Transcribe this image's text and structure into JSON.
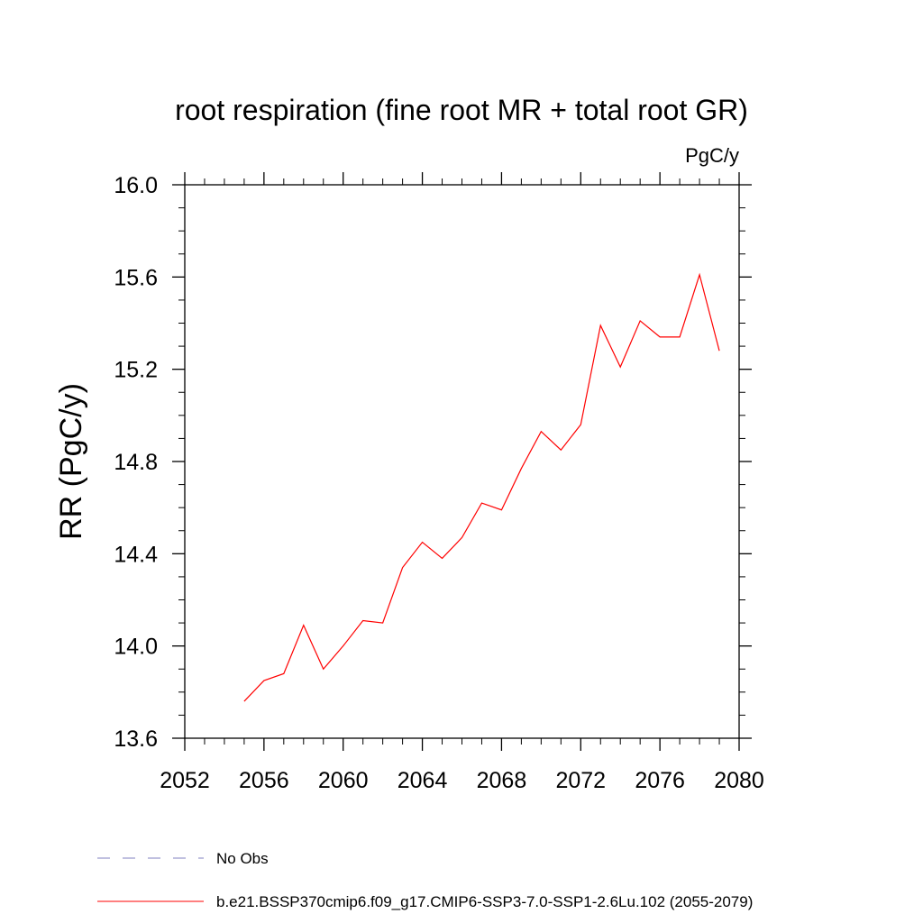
{
  "chart_data": {
    "type": "line",
    "title": "root respiration (fine root MR + total root GR)",
    "units": "PgC/y",
    "ylabel": "RR  (PgC/y)",
    "xlabel": "",
    "xlim": [
      2052,
      2080
    ],
    "ylim": [
      13.6,
      16.0
    ],
    "x_ticks": [
      2052,
      2056,
      2060,
      2064,
      2068,
      2072,
      2076,
      2080
    ],
    "x_tick_labels": [
      "2052",
      "2056",
      "2060",
      "2064",
      "2068",
      "2072",
      "2076",
      "2080"
    ],
    "x_minor_step": 1,
    "y_ticks": [
      13.6,
      14.0,
      14.4,
      14.8,
      15.2,
      15.6,
      16.0
    ],
    "y_tick_labels": [
      "13.6",
      "14.0",
      "14.4",
      "14.8",
      "15.2",
      "15.6",
      "16.0"
    ],
    "y_minor_step": 0.1,
    "grid": false,
    "legend_position": "bottom",
    "series": [
      {
        "name": "b.e21.BSSP370cmip6.f09_g17.CMIP6-SSP3-7.0-SSP1-2.6Lu.102 (2055-2079)",
        "color": "#ff0000",
        "x": [
          2055,
          2056,
          2057,
          2058,
          2059,
          2060,
          2061,
          2062,
          2063,
          2064,
          2065,
          2066,
          2067,
          2068,
          2069,
          2070,
          2071,
          2072,
          2073,
          2074,
          2075,
          2076,
          2077,
          2078,
          2079
        ],
        "y": [
          13.76,
          13.85,
          13.88,
          14.09,
          13.9,
          14.0,
          14.11,
          14.1,
          14.34,
          14.45,
          14.38,
          14.47,
          14.62,
          14.59,
          14.77,
          14.93,
          14.85,
          14.96,
          15.39,
          15.21,
          15.41,
          15.34,
          15.34,
          15.61,
          15.28
        ]
      }
    ],
    "legend": [
      {
        "label": "No Obs",
        "color": "#8080c0",
        "dash": "dashed"
      },
      {
        "label": "b.e21.BSSP370cmip6.f09_g17.CMIP6-SSP3-7.0-SSP1-2.6Lu.102 (2055-2079)",
        "color": "#ff0000",
        "dash": "solid"
      }
    ]
  }
}
